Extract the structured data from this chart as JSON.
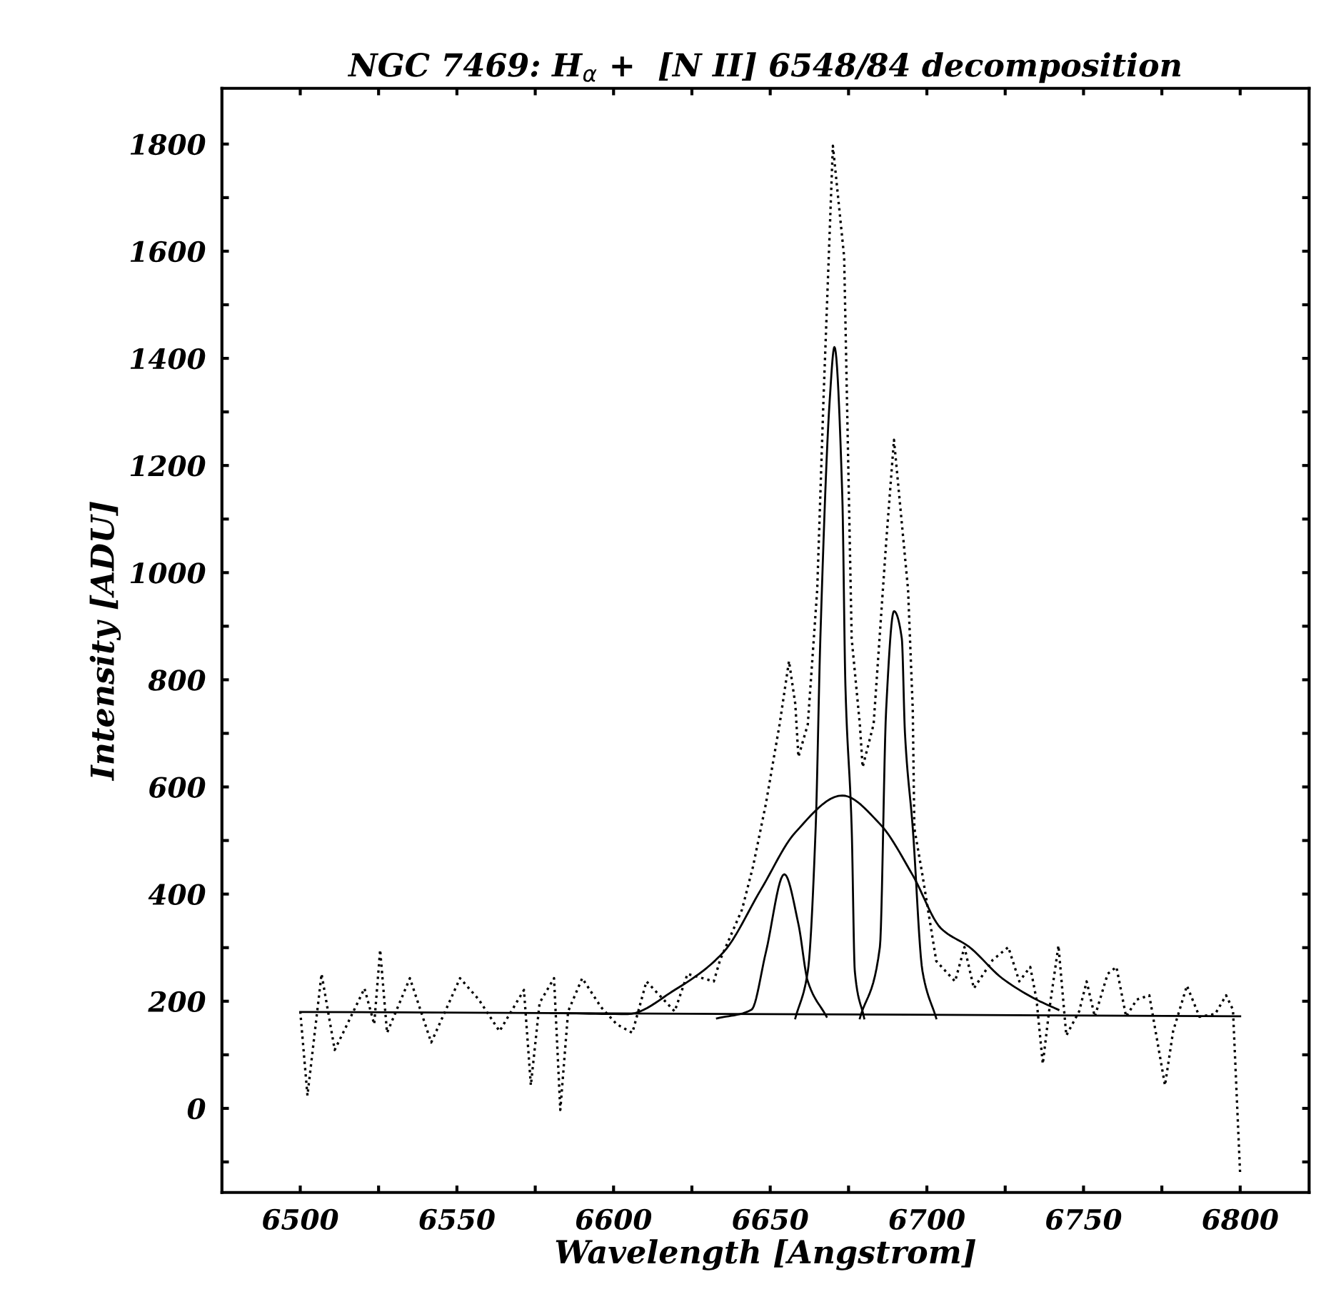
{
  "chart_data": {
    "type": "line",
    "title": "NGC 7469: H$_{α}$ +  [N II] 6548/84 decomposition",
    "xlabel": "Wavelength [Angstrom]",
    "ylabel": "Intensity [ADU]",
    "xlim": [
      6475,
      6822
    ],
    "ylim": [
      -157,
      1904
    ],
    "xticks": [
      6500,
      {
        "value": 6525,
        "label": null
      },
      6550,
      {
        "value": 6575,
        "label": null
      },
      6600,
      {
        "value": 6625,
        "label": null
      },
      6650,
      {
        "value": 6675,
        "label": null
      },
      6700,
      {
        "value": 6725,
        "label": null
      },
      6750,
      {
        "value": 6775,
        "label": null
      },
      6800
    ],
    "yticks": [
      {
        "value": -100,
        "label": null
      },
      0,
      {
        "value": 100,
        "label": null
      },
      200,
      {
        "value": 300,
        "label": null
      },
      400,
      {
        "value": 500,
        "label": null
      },
      600,
      {
        "value": 700,
        "label": null
      },
      800,
      {
        "value": 900,
        "label": null
      },
      1000,
      {
        "value": 1100,
        "label": null
      },
      1200,
      {
        "value": 1300,
        "label": null
      },
      1400,
      {
        "value": 1500,
        "label": null
      },
      1600,
      {
        "value": 1700,
        "label": null
      },
      1800
    ],
    "marker": "none",
    "series": [
      {
        "color": "#000000",
        "line_style": "dotted",
        "x": [
          6500,
          6502.3,
          6506.8,
          6511,
          6515,
          6520.5,
          6523.6,
          6525.5,
          6527.7,
          6535,
          6541.8,
          6551,
          6557,
          6563.6,
          6571.4,
          6573.6,
          6576.4,
          6581,
          6583,
          6585.5,
          6590,
          6596,
          6601,
          6606,
          6610.5,
          6619.5,
          6623.6,
          6632,
          6634,
          6641,
          6644.5,
          6648.6,
          6653,
          6656,
          6658,
          6659,
          6662,
          6665,
          6667,
          6670,
          6673.6,
          6676,
          6678.6,
          6679.5,
          6683,
          6687,
          6689.5,
          6694,
          6695.5,
          6696,
          6698.6,
          6703,
          6709,
          6712,
          6715,
          6721,
          6726,
          6729.5,
          6733,
          6735,
          6737,
          6739,
          6742,
          6744.5,
          6748.6,
          6751,
          6753.6,
          6757.7,
          6760.5,
          6763.6,
          6767,
          6771,
          6776,
          6778.6,
          6783,
          6787,
          6792,
          6795.5,
          6797.7,
          6800
        ],
        "values": [
          181,
          24,
          251,
          109,
          157,
          224,
          157,
          296,
          141,
          243,
          123,
          243,
          203,
          144,
          221,
          43,
          197,
          243,
          -3,
          181,
          243,
          189,
          157,
          141,
          237,
          181,
          251,
          237,
          277,
          371,
          451,
          568,
          717,
          835,
          755,
          656,
          717,
          968,
          1323,
          1797,
          1589,
          877,
          717,
          637,
          717,
          1056,
          1248,
          968,
          744,
          523,
          435,
          275,
          237,
          301,
          224,
          277,
          301,
          237,
          264,
          203,
          83,
          181,
          304,
          136,
          181,
          237,
          171,
          251,
          264,
          171,
          203,
          211,
          43,
          144,
          229,
          171,
          176,
          211,
          184,
          -125
        ]
      },
      {
        "color": "#000000",
        "line_style": "solid",
        "x": [
          6500,
          6800
        ],
        "values": [
          180,
          172
        ]
      },
      {
        "color": "#000000",
        "line_style": "solid",
        "x": [
          6580,
          6604.5,
          6619.5,
          6635,
          6647,
          6658,
          6673,
          6685,
          6695.5,
          6704.5,
          6713.6,
          6724,
          6735,
          6742
        ],
        "values": [
          178,
          176,
          221,
          291,
          408,
          515,
          584,
          531,
          435,
          336,
          301,
          243,
          203,
          184
        ]
      },
      {
        "color": "#000000",
        "line_style": "solid",
        "x": [
          6633,
          6644,
          6648.6,
          6654.5,
          6659,
          6662,
          6668
        ],
        "values": [
          168,
          184,
          291,
          437,
          344,
          237,
          171
        ]
      },
      {
        "color": "#000000",
        "line_style": "solid",
        "x": [
          6658,
          6662,
          6664.5,
          6666,
          6669,
          6670.5,
          6673,
          6674,
          6676,
          6677,
          6680
        ],
        "values": [
          168,
          256,
          523,
          877,
          1323,
          1421,
          1144,
          789,
          523,
          256,
          168
        ]
      },
      {
        "color": "#000000",
        "line_style": "solid",
        "x": [
          6678.6,
          6685,
          6687,
          6689.5,
          6692,
          6693,
          6695.5,
          6698.6,
          6703
        ],
        "values": [
          168,
          301,
          744,
          928,
          877,
          701,
          523,
          256,
          168
        ]
      }
    ]
  }
}
